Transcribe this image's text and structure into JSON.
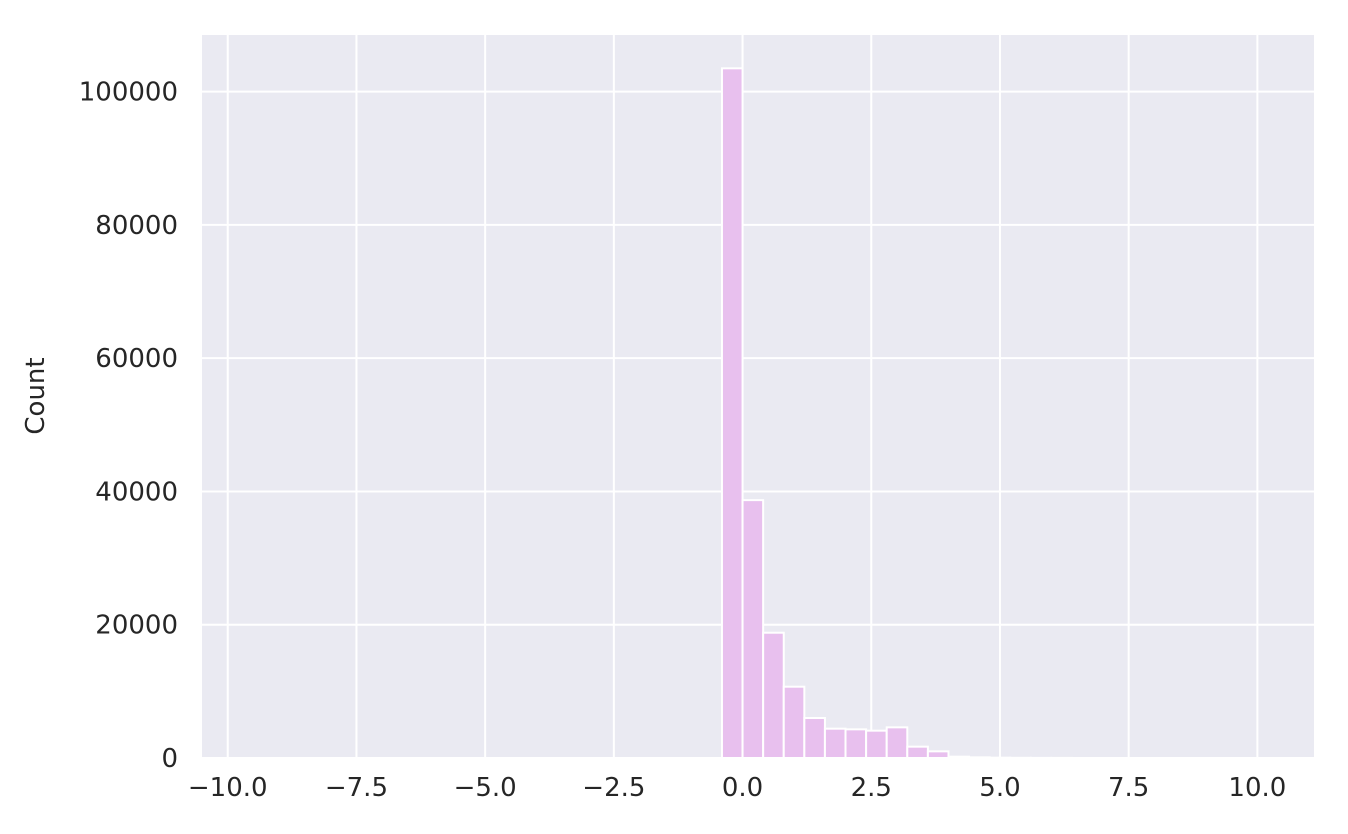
{
  "chart_data": {
    "type": "bar",
    "title": "",
    "xlabel": "",
    "ylabel": "Count",
    "xlim": [
      -10.5,
      11.1
    ],
    "ylim": [
      0,
      108500
    ],
    "x_ticks": [
      -10.0,
      -7.5,
      -5.0,
      -2.5,
      0.0,
      2.5,
      5.0,
      7.5,
      10.0
    ],
    "x_tick_labels": [
      "−10.0",
      "−7.5",
      "−5.0",
      "−2.5",
      "0.0",
      "2.5",
      "5.0",
      "7.5",
      "10.0"
    ],
    "y_ticks": [
      0,
      20000,
      40000,
      60000,
      80000,
      100000
    ],
    "y_tick_labels": [
      "0",
      "20000",
      "40000",
      "60000",
      "80000",
      "100000"
    ],
    "grid": true,
    "colors": {
      "plot_background": "#eaeaf2",
      "grid": "#ffffff",
      "bar_fill": "#e8c0ee",
      "bar_edge": "#ffffff"
    },
    "bins": [
      {
        "x0": -0.4,
        "x1": 0.0,
        "count": 103500
      },
      {
        "x0": 0.0,
        "x1": 0.4,
        "count": 38700
      },
      {
        "x0": 0.4,
        "x1": 0.8,
        "count": 18800
      },
      {
        "x0": 0.8,
        "x1": 1.2,
        "count": 10700
      },
      {
        "x0": 1.2,
        "x1": 1.6,
        "count": 6000
      },
      {
        "x0": 1.6,
        "x1": 2.0,
        "count": 4400
      },
      {
        "x0": 2.0,
        "x1": 2.4,
        "count": 4300
      },
      {
        "x0": 2.4,
        "x1": 2.8,
        "count": 4100
      },
      {
        "x0": 2.8,
        "x1": 3.2,
        "count": 4600
      },
      {
        "x0": 3.2,
        "x1": 3.6,
        "count": 1700
      },
      {
        "x0": 3.6,
        "x1": 4.0,
        "count": 1000
      },
      {
        "x0": 4.0,
        "x1": 4.4,
        "count": 200
      },
      {
        "x0": 4.4,
        "x1": 4.8,
        "count": 100
      },
      {
        "x0": 4.8,
        "x1": 5.2,
        "count": 50
      },
      {
        "x0": 5.2,
        "x1": 5.6,
        "count": 30
      },
      {
        "x0": 5.6,
        "x1": 6.0,
        "count": 20
      },
      {
        "x0": 6.0,
        "x1": 6.4,
        "count": 10
      }
    ]
  }
}
